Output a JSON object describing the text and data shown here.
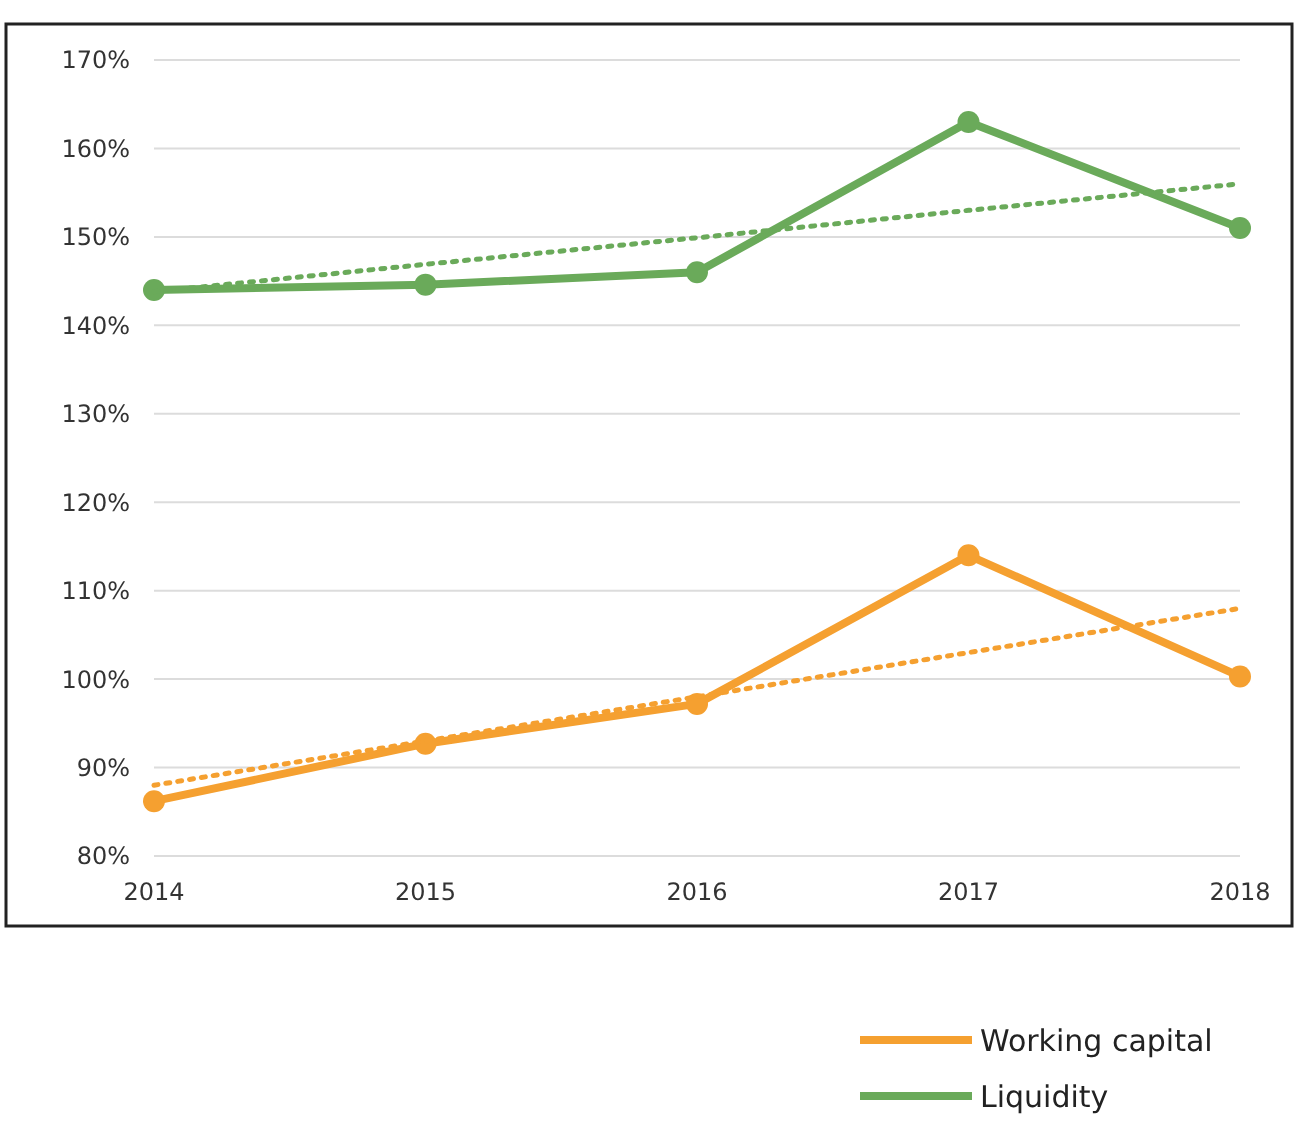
{
  "chart_data": {
    "type": "line",
    "categories": [
      "2014",
      "2015",
      "2016",
      "2017",
      "2018"
    ],
    "series": [
      {
        "name": "Working capital",
        "color": "#f5a030",
        "values": [
          86.2,
          92.7,
          97.2,
          114,
          100.3
        ],
        "marker": "circle",
        "line_style": "solid"
      },
      {
        "name": "Liquidity",
        "color": "#6aaa5a",
        "values": [
          144,
          144.6,
          146,
          163,
          151
        ],
        "marker": "circle",
        "line_style": "solid"
      },
      {
        "type": "line",
        "color": "#f5a030",
        "values": [
          88,
          93,
          98,
          103,
          108
        ],
        "marker": "none",
        "line_style": "dotted"
      },
      {
        "type": "line",
        "color": "#6aaa5a",
        "values": [
          143.8,
          146.9,
          149.9,
          153,
          156
        ],
        "marker": "none",
        "line_style": "dotted"
      }
    ],
    "ylim": [
      80,
      170
    ],
    "yticks": [
      {
        "value": 80,
        "label": "80%"
      },
      {
        "value": 90,
        "label": "90%"
      },
      {
        "value": 100,
        "label": "100%"
      },
      {
        "value": 110,
        "label": "110%"
      },
      {
        "value": 120,
        "label": "120%"
      },
      {
        "value": 130,
        "label": "130%"
      },
      {
        "value": 140,
        "label": "140%"
      },
      {
        "value": 150,
        "label": "150%"
      },
      {
        "value": 160,
        "label": "160%"
      },
      {
        "value": 170,
        "label": "170%"
      }
    ],
    "grid": "y",
    "legend": "bottom right"
  }
}
